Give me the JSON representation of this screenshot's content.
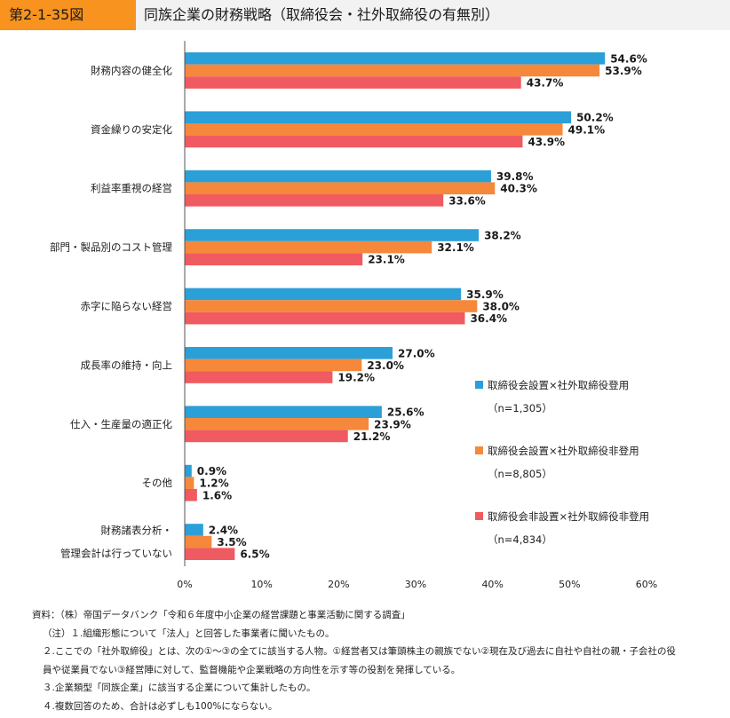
{
  "header": {
    "figure_label": "第2-1-35図",
    "title": "同族企業の財務戦略（取締役会・社外取締役の有無別）"
  },
  "chart_data": {
    "type": "bar",
    "orientation": "horizontal",
    "categories": [
      [
        "財務内容の健全化"
      ],
      [
        "資金繰りの安定化"
      ],
      [
        "利益率重視の経営"
      ],
      [
        "部門・製品別のコスト管理"
      ],
      [
        "赤字に陥らない経営"
      ],
      [
        "成長率の維持・向上"
      ],
      [
        "仕入・生産量の適正化"
      ],
      [
        "その他"
      ],
      [
        "財務諸表分析・",
        "管理会計は行っていない"
      ]
    ],
    "series": [
      {
        "name": "取締役会設置×社外取締役登用",
        "n": "（n=1,305）",
        "color": "#2b9fd8",
        "values": [
          54.6,
          50.2,
          39.8,
          38.2,
          35.9,
          27.0,
          25.6,
          0.9,
          2.4
        ]
      },
      {
        "name": "取締役会設置×社外取締役非登用",
        "n": "（n=8,805）",
        "color": "#f5883a",
        "values": [
          53.9,
          49.1,
          40.3,
          32.1,
          38.0,
          23.0,
          23.9,
          1.2,
          3.5
        ]
      },
      {
        "name": "取締役会非設置×社外取締役非登用",
        "n": "（n=4,834）",
        "color": "#f05a61",
        "values": [
          43.7,
          43.9,
          33.6,
          23.1,
          36.4,
          19.2,
          21.2,
          1.6,
          6.5
        ]
      }
    ],
    "xlim": [
      0,
      60
    ],
    "xticks": [
      0,
      10,
      20,
      30,
      40,
      50,
      60
    ],
    "tick_format": "{v}%",
    "value_format": "{v}%",
    "legend_position": "right",
    "grid": false
  },
  "notes": [
    "資料：（株）帝国データバンク「令和６年度中小企業の経営課題と事業活動に関する調査」",
    "（注）１.組織形態について「法人」と回答した事業者に聞いたもの。",
    "２.ここでの「社外取締役」とは、次の①～③の全てに該当する人物。①経営者又は筆頭株主の親族でない②現在及び過去に自社や自社の親・子会社の役",
    "員や従業員でない③経営陣に対して、監督機能や企業戦略の方向性を示す等の役割を発揮している。",
    "３.企業類型「同族企業」に該当する企業について集計したもの。",
    "４.複数回答のため、合計は必ずしも100%にならない。"
  ]
}
